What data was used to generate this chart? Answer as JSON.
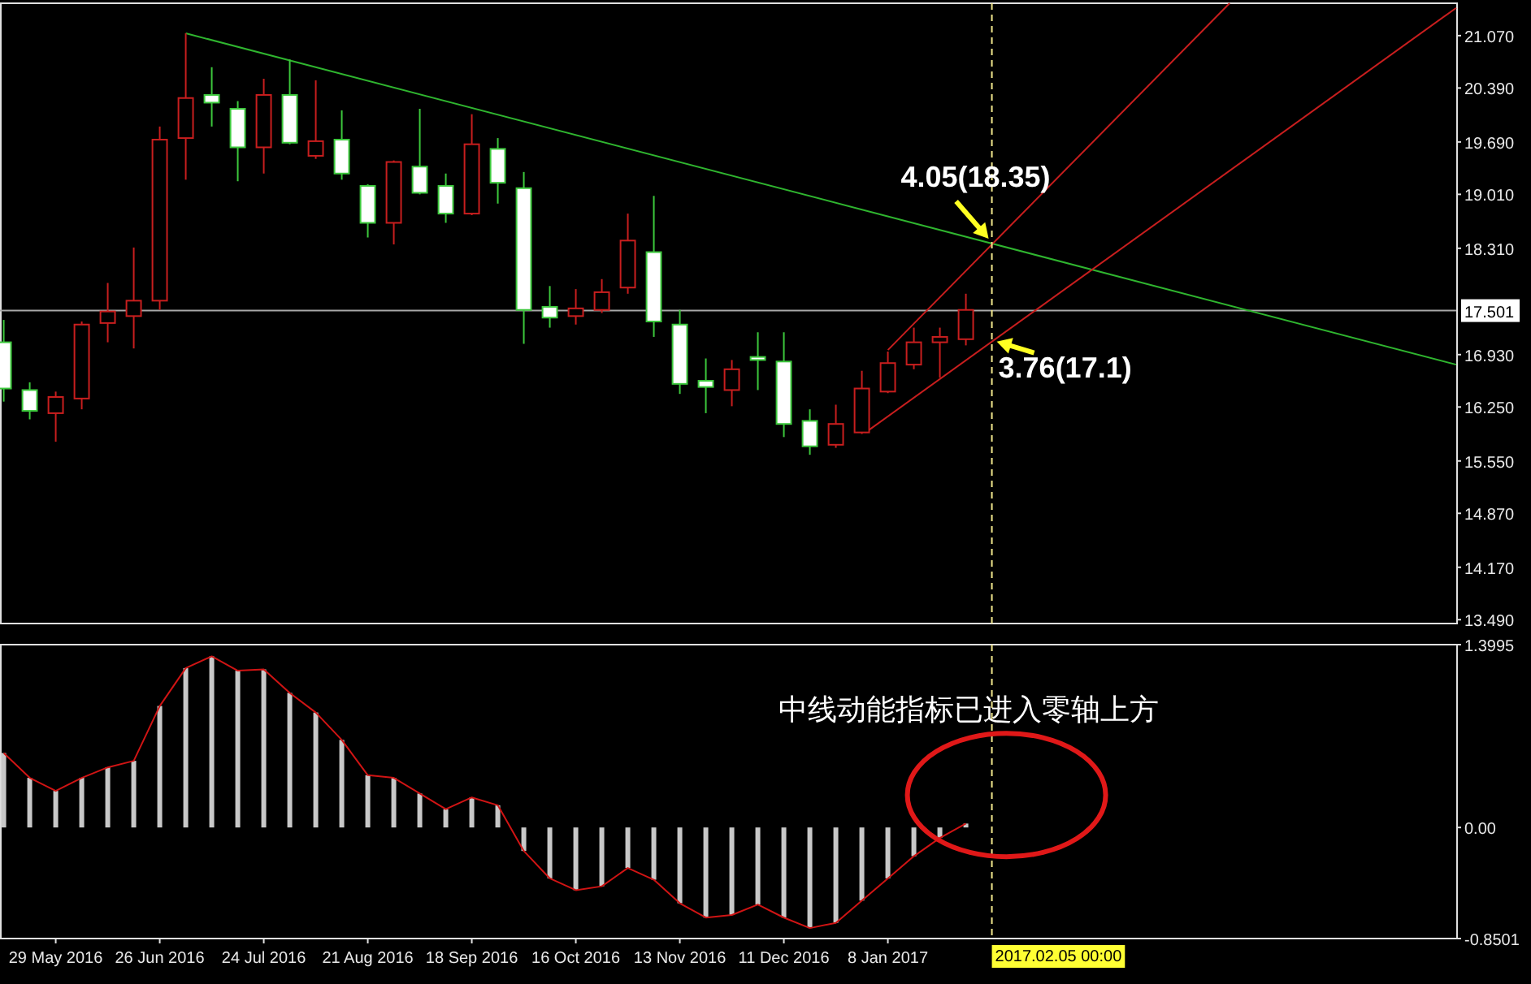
{
  "chart_data": [
    {
      "type": "candlestick",
      "tick_labels": "y",
      "x": [
        "2016-05-15",
        "2016-05-22",
        "2016-05-29",
        "2016-06-05",
        "2016-06-12",
        "2016-06-19",
        "2016-06-26",
        "2016-07-03",
        "2016-07-10",
        "2016-07-17",
        "2016-07-24",
        "2016-07-31",
        "2016-08-07",
        "2016-08-14",
        "2016-08-21",
        "2016-08-28",
        "2016-09-04",
        "2016-09-11",
        "2016-09-18",
        "2016-09-25",
        "2016-10-02",
        "2016-10-09",
        "2016-10-16",
        "2016-10-23",
        "2016-10-30",
        "2016-11-06",
        "2016-11-13",
        "2016-11-20",
        "2016-11-27",
        "2016-12-04",
        "2016-12-11",
        "2016-12-18",
        "2016-12-25",
        "2017-01-01",
        "2017-01-08",
        "2017-01-15",
        "2017-01-22",
        "2017-01-29"
      ],
      "ohlc": [
        [
          17.09,
          17.38,
          16.32,
          16.49
        ],
        [
          16.47,
          16.57,
          16.09,
          16.2
        ],
        [
          16.17,
          16.45,
          15.8,
          16.38
        ],
        [
          16.36,
          17.36,
          16.22,
          17.32
        ],
        [
          17.34,
          17.86,
          17.09,
          17.49
        ],
        [
          17.43,
          18.32,
          17.01,
          17.63
        ],
        [
          17.63,
          19.89,
          17.51,
          19.72
        ],
        [
          19.74,
          21.1,
          19.2,
          20.26
        ],
        [
          20.3,
          20.66,
          19.89,
          20.2
        ],
        [
          20.12,
          20.22,
          19.18,
          19.62
        ],
        [
          19.62,
          20.51,
          19.28,
          20.3
        ],
        [
          20.3,
          20.76,
          19.66,
          19.68
        ],
        [
          19.51,
          20.49,
          19.47,
          19.7
        ],
        [
          19.72,
          20.1,
          19.2,
          19.28
        ],
        [
          19.12,
          19.14,
          18.45,
          18.64
        ],
        [
          18.64,
          19.45,
          18.36,
          19.43
        ],
        [
          19.37,
          20.12,
          19.01,
          19.03
        ],
        [
          19.12,
          19.28,
          18.64,
          18.76
        ],
        [
          18.76,
          20.05,
          18.74,
          19.66
        ],
        [
          19.6,
          19.74,
          18.89,
          19.16
        ],
        [
          19.09,
          19.3,
          17.07,
          17.51
        ],
        [
          17.55,
          17.82,
          17.28,
          17.41
        ],
        [
          17.43,
          17.78,
          17.32,
          17.53
        ],
        [
          17.51,
          17.91,
          17.47,
          17.74
        ],
        [
          17.8,
          18.76,
          17.72,
          18.41
        ],
        [
          18.26,
          18.99,
          17.16,
          17.36
        ],
        [
          17.32,
          17.51,
          16.42,
          16.55
        ],
        [
          16.59,
          16.88,
          16.17,
          16.51
        ],
        [
          16.47,
          16.86,
          16.26,
          16.74
        ],
        [
          16.9,
          17.22,
          16.47,
          16.86
        ],
        [
          16.84,
          17.22,
          15.86,
          16.03
        ],
        [
          16.07,
          16.22,
          15.63,
          15.74
        ],
        [
          15.76,
          16.28,
          15.72,
          16.03
        ],
        [
          15.92,
          16.72,
          15.9,
          16.49
        ],
        [
          16.45,
          16.97,
          16.43,
          16.82
        ],
        [
          16.8,
          17.28,
          16.74,
          17.09
        ],
        [
          17.09,
          17.28,
          16.63,
          17.16
        ],
        [
          17.13,
          17.72,
          17.05,
          17.51
        ]
      ],
      "series": [
        {
          "type": "line",
          "color": "#2fb52f",
          "x": [
            "2016-07-03",
            "2017-06-10"
          ],
          "values": [
            21.1,
            16.8
          ]
        },
        {
          "type": "line",
          "color": "#c81e1e",
          "x": [
            "2017-01-08",
            "2017-04-10"
          ],
          "values": [
            16.99,
            21.49
          ]
        },
        {
          "type": "line",
          "color": "#c81e1e",
          "x": [
            "2017-01-02",
            "2017-06-10"
          ],
          "values": [
            15.92,
            21.43
          ]
        }
      ],
      "xlim": [
        "2016-05-14",
        "2017-06-10"
      ],
      "ylim": [
        13.44,
        21.49
      ],
      "yticks": [
        {
          "value": 13.49,
          "label": "13.490"
        },
        {
          "value": 14.17,
          "label": "14.170"
        },
        {
          "value": 14.87,
          "label": "14.870"
        },
        {
          "value": 15.55,
          "label": "15.550"
        },
        {
          "value": 16.25,
          "label": "16.250"
        },
        {
          "value": 16.93,
          "label": "16.930"
        },
        {
          "value": 18.31,
          "label": "18.310"
        },
        {
          "value": 19.01,
          "label": "19.010"
        },
        {
          "value": 19.69,
          "label": "19.690"
        },
        {
          "value": 20.39,
          "label": "20.390"
        },
        {
          "value": 21.07,
          "label": "21.070"
        }
      ],
      "ref_lines": [
        {
          "axis": "y",
          "value": 17.501,
          "label": "17.501",
          "color": "#a8a8a8"
        },
        {
          "axis": "x",
          "value": "2017-02-05",
          "color": "#f0e68c",
          "line_style": "dashed"
        }
      ],
      "annotations": [
        {
          "text": "4.05(18.35)",
          "x": "2017-02-05",
          "y": 18.35
        },
        {
          "text": "3.76(17.1)",
          "x": "2017-02-05",
          "y": 17.1
        }
      ]
    },
    {
      "type": "bar",
      "x": [
        "2016-05-15",
        "2016-05-22",
        "2016-05-29",
        "2016-06-05",
        "2016-06-12",
        "2016-06-19",
        "2016-06-26",
        "2016-07-03",
        "2016-07-10",
        "2016-07-17",
        "2016-07-24",
        "2016-07-31",
        "2016-08-07",
        "2016-08-14",
        "2016-08-21",
        "2016-08-28",
        "2016-09-04",
        "2016-09-11",
        "2016-09-18",
        "2016-09-25",
        "2016-10-02",
        "2016-10-09",
        "2016-10-16",
        "2016-10-23",
        "2016-10-30",
        "2016-11-06",
        "2016-11-13",
        "2016-11-20",
        "2016-11-27",
        "2016-12-04",
        "2016-12-11",
        "2016-12-18",
        "2016-12-25",
        "2017-01-01",
        "2017-01-08",
        "2017-01-15",
        "2017-01-22",
        "2017-01-29"
      ],
      "series": [
        {
          "type": "bar",
          "color": "#c8c8c8",
          "values": [
            0.57,
            0.38,
            0.28,
            0.38,
            0.46,
            0.51,
            0.93,
            1.22,
            1.31,
            1.2,
            1.21,
            1.03,
            0.88,
            0.67,
            0.4,
            0.38,
            0.26,
            0.14,
            0.23,
            0.17,
            -0.18,
            -0.39,
            -0.48,
            -0.45,
            -0.31,
            -0.4,
            -0.58,
            -0.69,
            -0.67,
            -0.59,
            -0.69,
            -0.77,
            -0.73,
            -0.56,
            -0.39,
            -0.22,
            -0.08,
            0.03
          ]
        },
        {
          "type": "line",
          "color": "#d01414",
          "values": [
            0.57,
            0.38,
            0.28,
            0.38,
            0.46,
            0.51,
            0.93,
            1.22,
            1.31,
            1.2,
            1.21,
            1.03,
            0.88,
            0.67,
            0.4,
            0.38,
            0.26,
            0.14,
            0.23,
            0.17,
            -0.18,
            -0.39,
            -0.48,
            -0.45,
            -0.31,
            -0.4,
            -0.58,
            -0.69,
            -0.67,
            -0.59,
            -0.69,
            -0.77,
            -0.73,
            -0.56,
            -0.39,
            -0.22,
            -0.08,
            0.03
          ]
        }
      ],
      "xlim": [
        "2016-05-14",
        "2017-06-10"
      ],
      "ylim": [
        -0.8501,
        1.3995
      ],
      "yticks": [
        {
          "value": 1.3995,
          "label": "1.3995"
        },
        {
          "value": 0,
          "label": "0.00"
        },
        {
          "value": -0.8501,
          "label": "-0.8501"
        }
      ],
      "xticks": [
        {
          "value": "2016-05-29",
          "label": "29 May 2016"
        },
        {
          "value": "2016-06-26",
          "label": "26 Jun 2016"
        },
        {
          "value": "2016-07-24",
          "label": "24 Jul 2016"
        },
        {
          "value": "2016-08-21",
          "label": "21 Aug 2016"
        },
        {
          "value": "2016-09-18",
          "label": "18 Sep 2016"
        },
        {
          "value": "2016-10-16",
          "label": "16 Oct 2016"
        },
        {
          "value": "2016-11-13",
          "label": "13 Nov 2016"
        },
        {
          "value": "2016-12-11",
          "label": "11 Dec 2016"
        },
        {
          "value": "2017-01-08",
          "label": "8 Jan 2017"
        }
      ],
      "ref_lines": [
        {
          "axis": "x",
          "value": "2017-02-05",
          "label": "2017.02.05 00:00",
          "color": "#f0e68c",
          "line_style": "dashed"
        }
      ],
      "annotations": [
        "中线动能指标已进入零轴上方"
      ]
    }
  ]
}
